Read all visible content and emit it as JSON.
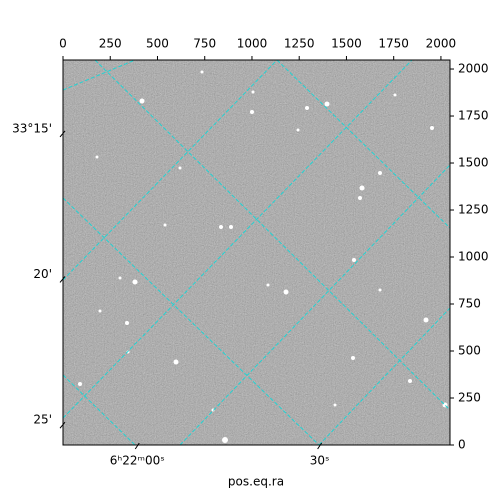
{
  "chart_data": {
    "type": "image",
    "xlabel": "pos.eq.ra",
    "xlim": [
      0,
      2048
    ],
    "ylim": [
      0,
      2048
    ],
    "xticks": [
      0,
      250,
      500,
      750,
      1000,
      1250,
      1500,
      1750,
      2000
    ],
    "yticks": [
      0,
      250,
      500,
      750,
      1000,
      1250,
      1500,
      1750,
      2000
    ],
    "wcs_xticks": [
      {
        "value": 393,
        "label": "6ʰ22ᵐ00ˢ"
      },
      {
        "value": 1358,
        "label": "30ˢ"
      }
    ],
    "wcs_yticks": [
      {
        "value": 1660,
        "label": "33°15'"
      },
      {
        "value": 886,
        "label": "20'"
      },
      {
        "value": 111,
        "label": "25'"
      }
    ]
  }
}
